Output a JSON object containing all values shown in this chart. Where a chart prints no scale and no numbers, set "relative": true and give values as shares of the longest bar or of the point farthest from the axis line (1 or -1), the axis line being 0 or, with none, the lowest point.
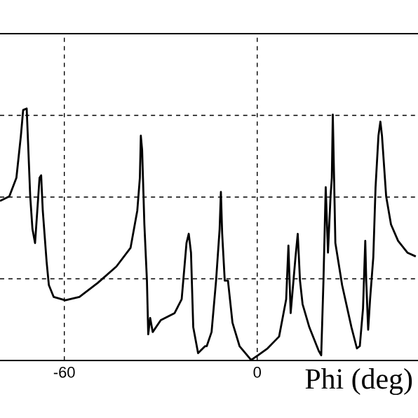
{
  "chart_data": {
    "type": "line",
    "relative": true,
    "xlabel": "Phi (deg)",
    "xlim": [
      -80,
      50
    ],
    "xticks": [
      -60,
      0
    ],
    "grid": true,
    "color": "#000000",
    "x": [
      -80.0,
      -77.1,
      -74.9,
      -73.5,
      -72.8,
      -71.7,
      -71.3,
      -70.6,
      -69.9,
      -69.1,
      -68.4,
      -67.7,
      -67.2,
      -66.7,
      -65.5,
      -64.8,
      -63.3,
      -59.7,
      -55.3,
      -49.6,
      -43.8,
      -39.4,
      -37.3,
      -36.5,
      -36.2,
      -35.8,
      -35.1,
      -34.3,
      -33.9,
      -33.3,
      -32.5,
      -30.0,
      -25.7,
      -23.5,
      -22.0,
      -21.3,
      -20.6,
      -19.9,
      -18.4,
      -16.2,
      -15.7,
      -14.2,
      -12.8,
      -11.7,
      -11.3,
      -10.9,
      -10.1,
      -9.1,
      -7.7,
      -5.5,
      -1.9,
      0.3,
      3.2,
      6.8,
      9.0,
      9.7,
      10.4,
      11.9,
      12.6,
      13.3,
      14.1,
      16.2,
      19.1,
      19.9,
      20.6,
      21.3,
      22.0,
      22.8,
      23.2,
      23.5,
      23.9,
      24.3,
      26.4,
      29.3,
      31.0,
      31.9,
      32.9,
      33.6,
      33.9,
      34.5,
      35.1,
      36.1,
      36.8,
      37.7,
      38.3,
      38.8,
      40.1,
      41.6,
      43.8,
      46.7,
      49.3
    ],
    "values": [
      0.633,
      0.651,
      0.725,
      0.892,
      0.994,
      1.0,
      0.874,
      0.651,
      0.521,
      0.466,
      0.595,
      0.725,
      0.735,
      0.595,
      0.391,
      0.299,
      0.252,
      0.239,
      0.252,
      0.308,
      0.373,
      0.447,
      0.595,
      0.725,
      0.892,
      0.836,
      0.54,
      0.317,
      0.104,
      0.169,
      0.113,
      0.16,
      0.188,
      0.243,
      0.466,
      0.503,
      0.428,
      0.132,
      0.029,
      0.057,
      0.057,
      0.113,
      0.317,
      0.521,
      0.669,
      0.503,
      0.317,
      0.317,
      0.15,
      0.057,
      0.002,
      0.021,
      0.048,
      0.095,
      0.243,
      0.456,
      0.188,
      0.41,
      0.503,
      0.317,
      0.224,
      0.132,
      0.039,
      0.021,
      0.317,
      0.688,
      0.428,
      0.651,
      0.725,
      0.976,
      0.725,
      0.466,
      0.299,
      0.132,
      0.048,
      0.057,
      0.206,
      0.475,
      0.317,
      0.122,
      0.243,
      0.41,
      0.688,
      0.892,
      0.948,
      0.892,
      0.651,
      0.54,
      0.475,
      0.428,
      0.413
    ]
  }
}
